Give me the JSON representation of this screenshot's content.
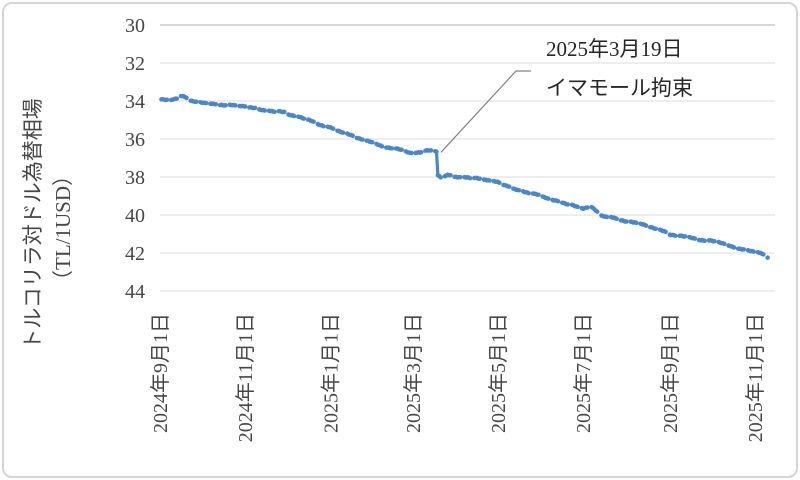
{
  "chart_data": {
    "type": "line",
    "title": "",
    "y_axis": {
      "label_line1": "トルコリラ対ドル為替相場",
      "label_line2": "（TL/1USD）",
      "min": 30,
      "max": 44,
      "tick_step": 2,
      "reversed": true,
      "ticks": [
        30,
        32,
        34,
        36,
        38,
        40,
        42,
        44
      ]
    },
    "x_axis": {
      "tick_labels": [
        "2024年9月1日",
        "2024年11月1日",
        "2025年1月1日",
        "2025年3月1日",
        "2025年5月1日",
        "2025年7月1日",
        "2025年9月1日",
        "2025年11月1日"
      ],
      "tick_dates": [
        "2024-09-01",
        "2024-11-01",
        "2025-01-01",
        "2025-03-01",
        "2025-05-01",
        "2025-07-01",
        "2025-09-01",
        "2025-11-01"
      ],
      "range_start": "2024-09-01",
      "range_end": "2025-11-10"
    },
    "annotation": {
      "line1": "2025年3月19日",
      "line2": "イマモール拘束",
      "target_date": "2025-03-19",
      "target_value": 36.7
    },
    "grid": true,
    "legend": "none",
    "series": [
      {
        "name": "トルコリラ対ドル為替相場",
        "color": "#4b87c8",
        "frequency": "daily-weekdays",
        "points": [
          [
            "2024-09-01",
            33.95
          ],
          [
            "2024-09-06",
            34.0
          ],
          [
            "2024-09-11",
            33.85
          ],
          [
            "2024-09-17",
            33.78
          ],
          [
            "2024-09-24",
            34.0
          ],
          [
            "2024-10-01",
            34.1
          ],
          [
            "2024-10-08",
            34.15
          ],
          [
            "2024-10-15",
            34.2
          ],
          [
            "2024-10-22",
            34.25
          ],
          [
            "2024-11-01",
            34.3
          ],
          [
            "2024-11-11",
            34.4
          ],
          [
            "2024-11-20",
            34.5
          ],
          [
            "2024-12-01",
            34.65
          ],
          [
            "2024-12-10",
            34.8
          ],
          [
            "2024-12-20",
            35.1
          ],
          [
            "2024-12-30",
            35.35
          ],
          [
            "2025-01-08",
            35.6
          ],
          [
            "2025-01-15",
            35.8
          ],
          [
            "2025-01-24",
            36.0
          ],
          [
            "2025-02-03",
            36.25
          ],
          [
            "2025-02-10",
            36.45
          ],
          [
            "2025-02-18",
            36.55
          ],
          [
            "2025-02-27",
            36.75
          ],
          [
            "2025-03-07",
            36.7
          ],
          [
            "2025-03-12",
            36.65
          ],
          [
            "2025-03-18",
            36.7
          ],
          [
            "2025-03-19",
            37.95
          ],
          [
            "2025-03-21",
            38.05
          ],
          [
            "2025-03-26",
            37.9
          ],
          [
            "2025-04-01",
            37.95
          ],
          [
            "2025-04-09",
            38.0
          ],
          [
            "2025-04-17",
            38.1
          ],
          [
            "2025-04-25",
            38.2
          ],
          [
            "2025-05-01",
            38.3
          ],
          [
            "2025-05-09",
            38.5
          ],
          [
            "2025-05-16",
            38.65
          ],
          [
            "2025-05-23",
            38.8
          ],
          [
            "2025-06-02",
            39.0
          ],
          [
            "2025-06-09",
            39.2
          ],
          [
            "2025-06-16",
            39.3
          ],
          [
            "2025-06-24",
            39.5
          ],
          [
            "2025-07-01",
            39.7
          ],
          [
            "2025-07-07",
            39.55
          ],
          [
            "2025-07-14",
            40.0
          ],
          [
            "2025-07-22",
            40.15
          ],
          [
            "2025-08-01",
            40.35
          ],
          [
            "2025-08-11",
            40.5
          ],
          [
            "2025-08-20",
            40.7
          ],
          [
            "2025-09-01",
            41.0
          ],
          [
            "2025-09-10",
            41.1
          ],
          [
            "2025-09-19",
            41.25
          ],
          [
            "2025-10-01",
            41.35
          ],
          [
            "2025-10-10",
            41.55
          ],
          [
            "2025-10-20",
            41.8
          ],
          [
            "2025-11-03",
            42.0
          ],
          [
            "2025-11-10",
            42.2
          ]
        ]
      }
    ],
    "colors": {
      "series": "#4b87c8",
      "gridline": "#dcdcdc",
      "axis_line": "#c9c9c9",
      "tick_text": "#464646",
      "annotation_text": "#262626",
      "leader_line": "#808080",
      "border": "#d7d5d5",
      "background": "#ffffff"
    }
  }
}
